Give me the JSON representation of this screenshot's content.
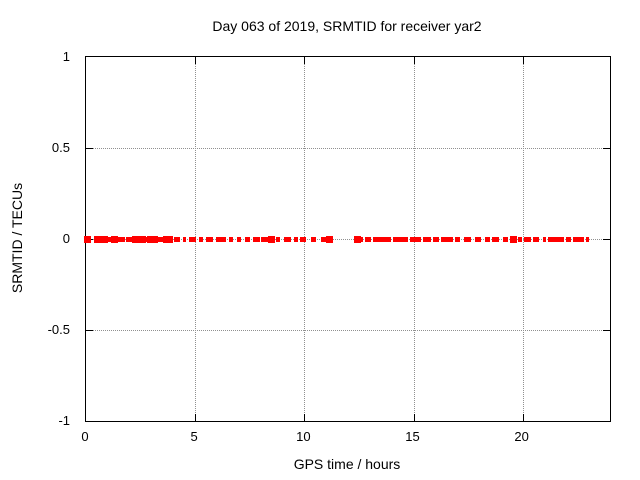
{
  "chart_data": {
    "type": "scatter",
    "title": "Day 063 of 2019, SRMTID for receiver yar2",
    "xlabel": "GPS time / hours",
    "ylabel": "SRMTID / TECUs",
    "xlim": [
      0,
      24
    ],
    "ylim": [
      -1,
      1
    ],
    "xticks": [
      0,
      5,
      10,
      15,
      20
    ],
    "yticks": [
      -1,
      -0.5,
      0,
      0.5,
      1
    ],
    "grid": true,
    "legend_position": "none",
    "marker": "plus",
    "marker_color": "#ff0000",
    "series": [
      {
        "name": "SRMTID",
        "y_value": 0,
        "x_segments": [
          [
            0.03,
            0.14
          ],
          [
            0.46,
            0.55
          ],
          [
            0.64,
            0.73
          ],
          [
            0.78,
            0.87
          ],
          [
            0.92,
            1.19
          ],
          [
            1.24,
            1.37
          ],
          [
            1.42,
            1.79
          ],
          [
            1.83,
            2.15
          ],
          [
            2.2,
            2.29
          ],
          [
            2.34,
            2.47
          ],
          [
            2.52,
            2.61
          ],
          [
            2.66,
            2.84
          ],
          [
            2.89,
            2.98
          ],
          [
            3.07,
            3.16
          ],
          [
            3.25,
            3.53
          ],
          [
            3.62,
            3.71
          ],
          [
            3.8,
            3.89
          ],
          [
            4.03,
            4.31
          ],
          [
            4.43,
            4.58
          ],
          [
            4.73,
            5.04
          ],
          [
            5.19,
            5.37
          ],
          [
            5.5,
            5.8
          ],
          [
            5.95,
            6.41
          ],
          [
            6.56,
            6.75
          ],
          [
            6.9,
            7.11
          ],
          [
            7.3,
            7.51
          ],
          [
            7.63,
            7.97
          ],
          [
            8.02,
            8.34
          ],
          [
            8.43,
            8.55
          ],
          [
            8.71,
            8.89
          ],
          [
            9.07,
            9.39
          ],
          [
            9.53,
            9.71
          ],
          [
            9.81,
            10.08
          ],
          [
            10.31,
            10.54
          ],
          [
            10.77,
            11.01
          ],
          [
            11.1,
            11.23
          ],
          [
            12.4,
            12.48
          ],
          [
            12.57,
            12.71
          ],
          [
            12.8,
            13.07
          ],
          [
            13.16,
            13.99
          ],
          [
            14.08,
            14.75
          ],
          [
            14.86,
            15.36
          ],
          [
            15.45,
            15.82
          ],
          [
            15.91,
            16.17
          ],
          [
            16.26,
            16.81
          ],
          [
            16.9,
            17.13
          ],
          [
            17.31,
            17.63
          ],
          [
            17.82,
            18.09
          ],
          [
            18.27,
            18.5
          ],
          [
            18.6,
            18.92
          ],
          [
            19.1,
            19.33
          ],
          [
            19.51,
            19.63
          ],
          [
            19.79,
            19.97
          ],
          [
            20.06,
            20.38
          ],
          [
            20.47,
            20.75
          ],
          [
            20.93,
            21.08
          ],
          [
            21.16,
            21.89
          ],
          [
            21.98,
            22.21
          ],
          [
            22.31,
            22.81
          ],
          [
            22.9,
            23.04
          ]
        ]
      }
    ]
  },
  "colors": {
    "marker": "#ff0000",
    "grid": "#909090",
    "axis": "#000000",
    "background": "#ffffff"
  }
}
